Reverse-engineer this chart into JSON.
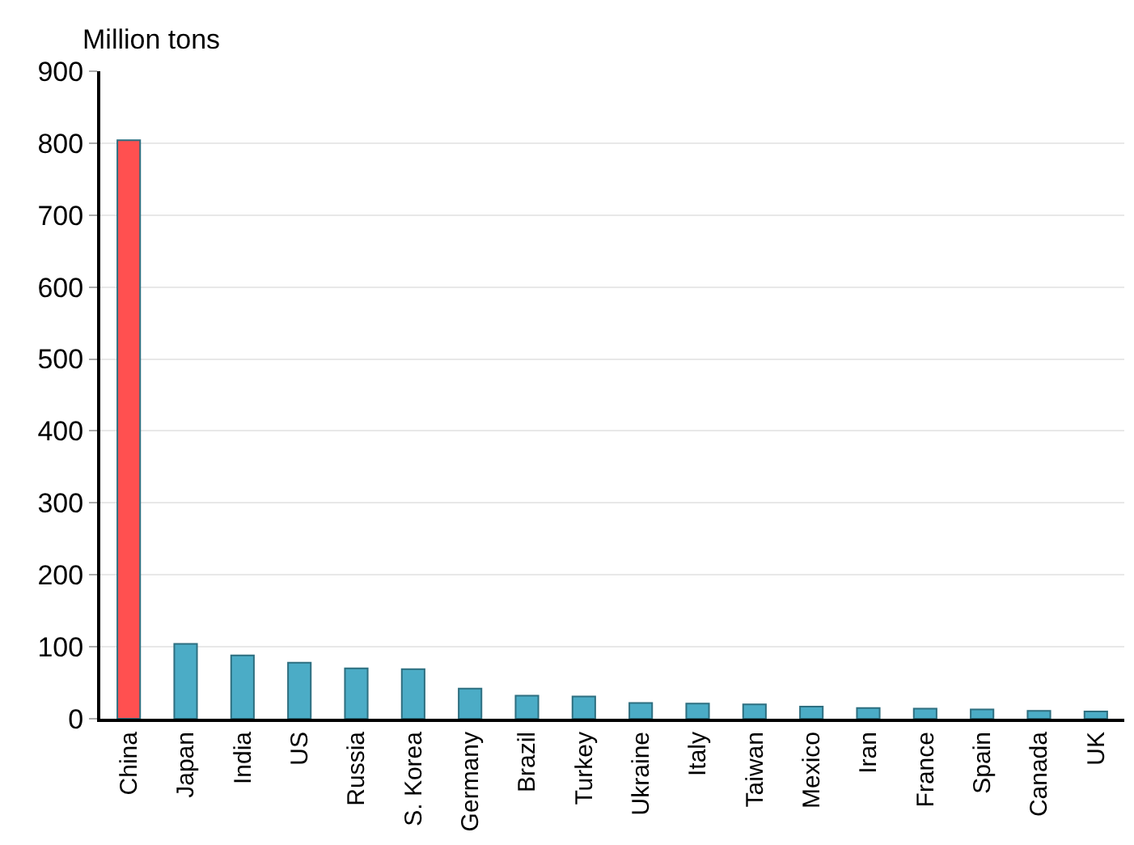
{
  "chart_data": {
    "type": "bar",
    "ylabel": "Million tons",
    "categories": [
      "China",
      "Japan",
      "India",
      "US",
      "Russia",
      "S. Korea",
      "Germany",
      "Brazil",
      "Turkey",
      "Ukraine",
      "Italy",
      "Taiwan",
      "Mexico",
      "Iran",
      "France",
      "Spain",
      "Canada",
      "UK"
    ],
    "values": [
      804,
      104,
      88,
      78,
      70,
      69,
      42,
      32,
      31,
      22,
      21,
      20,
      17,
      15,
      14,
      13,
      11,
      10
    ],
    "colors": [
      "#ff5050",
      "#4bacc6",
      "#4bacc6",
      "#4bacc6",
      "#4bacc6",
      "#4bacc6",
      "#4bacc6",
      "#4bacc6",
      "#4bacc6",
      "#4bacc6",
      "#4bacc6",
      "#4bacc6",
      "#4bacc6",
      "#4bacc6",
      "#4bacc6",
      "#4bacc6",
      "#4bacc6",
      "#4bacc6"
    ],
    "ylim": [
      0,
      900
    ],
    "yticks": [
      0,
      100,
      200,
      300,
      400,
      500,
      600,
      700,
      800,
      900
    ],
    "grid": "y"
  }
}
